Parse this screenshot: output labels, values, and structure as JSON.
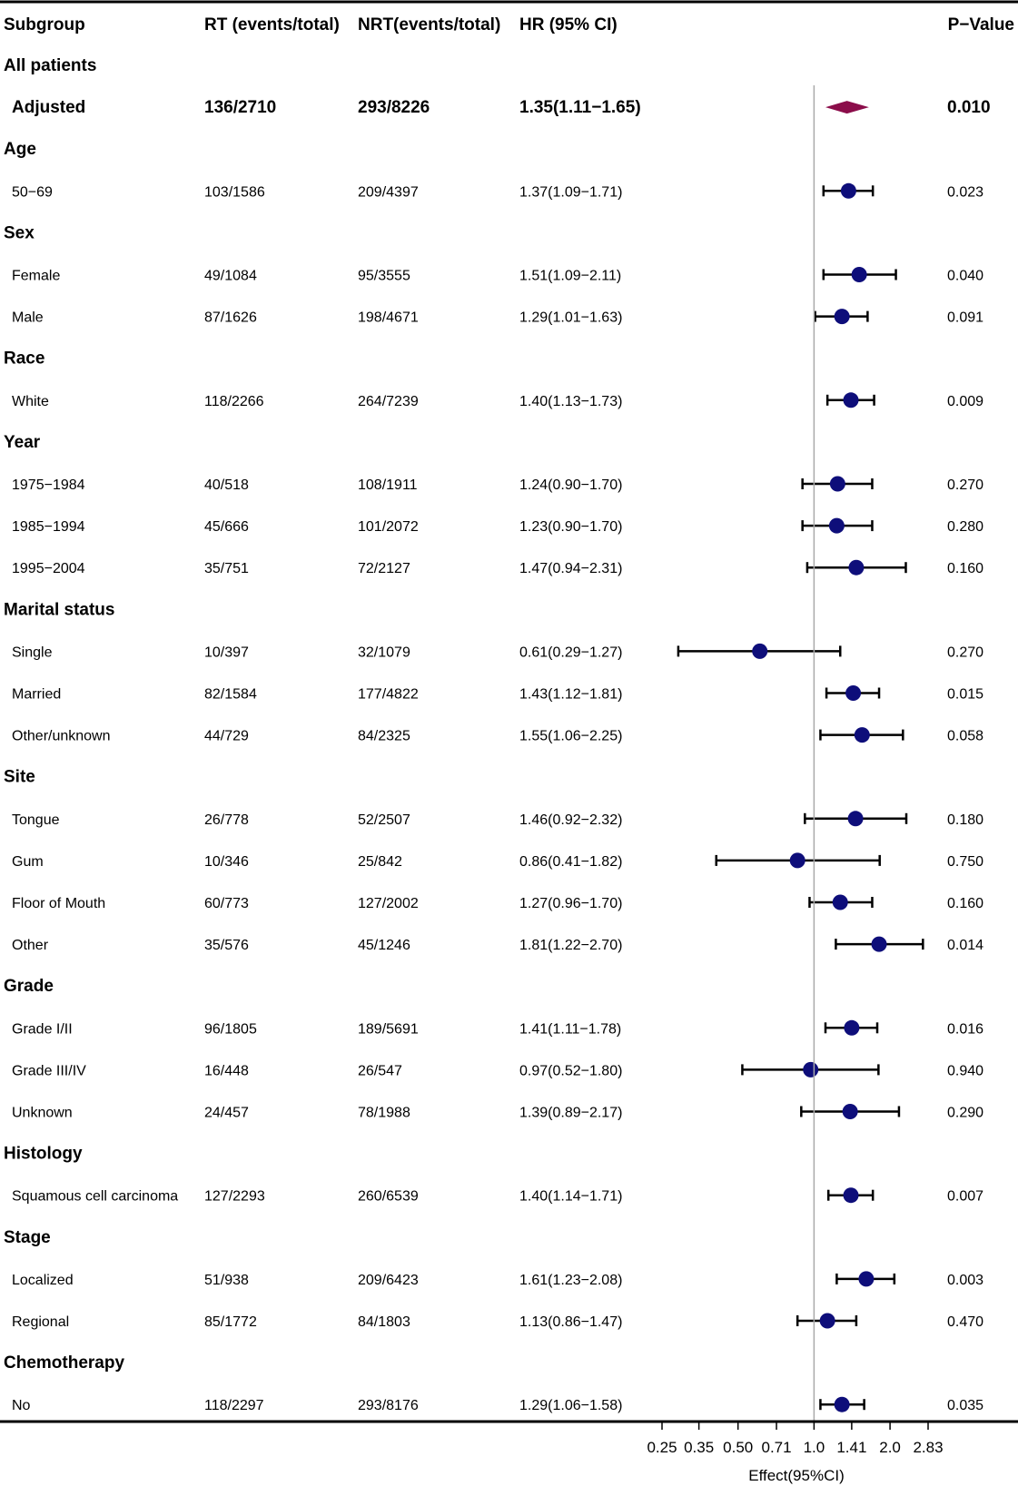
{
  "chart_data": {
    "type": "forest",
    "columns": {
      "subgroup": "Subgroup",
      "rt": "RT (events/total)",
      "nrt": "NRT(events/total)",
      "hr": "HR (95% CI)",
      "p": "P−Value"
    },
    "xlabel": "Effect(95%CI)",
    "x_scale": "log2",
    "xlim": [
      0.25,
      2.83
    ],
    "reference_line": 1.0,
    "ticks": [
      {
        "value": 0.25,
        "label": "0.25"
      },
      {
        "value": 0.35,
        "label": "0.35"
      },
      {
        "value": 0.5,
        "label": "0.50"
      },
      {
        "value": 0.71,
        "label": "0.71"
      },
      {
        "value": 1.0,
        "label": "1.0"
      },
      {
        "value": 1.41,
        "label": "1.41"
      },
      {
        "value": 2.0,
        "label": "2.0"
      },
      {
        "value": 2.83,
        "label": "2.83"
      }
    ],
    "colors": {
      "point": "#0e0e7a",
      "diamond": "#8b0d4a",
      "line": "#000000",
      "refline": "#aaaaaa"
    },
    "rows": [
      {
        "kind": "group",
        "label": "All patients"
      },
      {
        "kind": "summary",
        "label": "Adjusted",
        "rt": "136/2710",
        "nrt": "293/8226",
        "hr_text": "1.35(1.11−1.65)",
        "hr": 1.35,
        "lo": 1.11,
        "hi": 1.65,
        "p": "0.010"
      },
      {
        "kind": "group",
        "label": "Age"
      },
      {
        "kind": "item",
        "label": "50−69",
        "rt": "103/1586",
        "nrt": "209/4397",
        "hr_text": "1.37(1.09−1.71)",
        "hr": 1.37,
        "lo": 1.09,
        "hi": 1.71,
        "p": "0.023"
      },
      {
        "kind": "group",
        "label": "Sex"
      },
      {
        "kind": "item",
        "label": "Female",
        "rt": "49/1084",
        "nrt": "95/3555",
        "hr_text": "1.51(1.09−2.11)",
        "hr": 1.51,
        "lo": 1.09,
        "hi": 2.11,
        "p": "0.040"
      },
      {
        "kind": "item",
        "label": "Male",
        "rt": "87/1626",
        "nrt": "198/4671",
        "hr_text": "1.29(1.01−1.63)",
        "hr": 1.29,
        "lo": 1.01,
        "hi": 1.63,
        "p": "0.091"
      },
      {
        "kind": "group",
        "label": "Race"
      },
      {
        "kind": "item",
        "label": "White",
        "rt": "118/2266",
        "nrt": "264/7239",
        "hr_text": "1.40(1.13−1.73)",
        "hr": 1.4,
        "lo": 1.13,
        "hi": 1.73,
        "p": "0.009"
      },
      {
        "kind": "group",
        "label": "Year"
      },
      {
        "kind": "item",
        "label": "1975−1984",
        "rt": "40/518",
        "nrt": "108/1911",
        "hr_text": "1.24(0.90−1.70)",
        "hr": 1.24,
        "lo": 0.9,
        "hi": 1.7,
        "p": "0.270"
      },
      {
        "kind": "item",
        "label": "1985−1994",
        "rt": "45/666",
        "nrt": "101/2072",
        "hr_text": "1.23(0.90−1.70)",
        "hr": 1.23,
        "lo": 0.9,
        "hi": 1.7,
        "p": "0.280"
      },
      {
        "kind": "item",
        "label": "1995−2004",
        "rt": "35/751",
        "nrt": "72/2127",
        "hr_text": "1.47(0.94−2.31)",
        "hr": 1.47,
        "lo": 0.94,
        "hi": 2.31,
        "p": "0.160"
      },
      {
        "kind": "group",
        "label": "Marital status"
      },
      {
        "kind": "item",
        "label": "Single",
        "rt": "10/397",
        "nrt": "32/1079",
        "hr_text": "0.61(0.29−1.27)",
        "hr": 0.61,
        "lo": 0.29,
        "hi": 1.27,
        "p": "0.270"
      },
      {
        "kind": "item",
        "label": "Married",
        "rt": "82/1584",
        "nrt": "177/4822",
        "hr_text": "1.43(1.12−1.81)",
        "hr": 1.43,
        "lo": 1.12,
        "hi": 1.81,
        "p": "0.015"
      },
      {
        "kind": "item",
        "label": "Other/unknown",
        "rt": "44/729",
        "nrt": "84/2325",
        "hr_text": "1.55(1.06−2.25)",
        "hr": 1.55,
        "lo": 1.06,
        "hi": 2.25,
        "p": "0.058"
      },
      {
        "kind": "group",
        "label": "Site"
      },
      {
        "kind": "item",
        "label": "Tongue",
        "rt": "26/778",
        "nrt": "52/2507",
        "hr_text": "1.46(0.92−2.32)",
        "hr": 1.46,
        "lo": 0.92,
        "hi": 2.32,
        "p": "0.180"
      },
      {
        "kind": "item",
        "label": "Gum",
        "rt": "10/346",
        "nrt": "25/842",
        "hr_text": "0.86(0.41−1.82)",
        "hr": 0.86,
        "lo": 0.41,
        "hi": 1.82,
        "p": "0.750"
      },
      {
        "kind": "item",
        "label": "Floor of Mouth",
        "rt": "60/773",
        "nrt": "127/2002",
        "hr_text": "1.27(0.96−1.70)",
        "hr": 1.27,
        "lo": 0.96,
        "hi": 1.7,
        "p": "0.160"
      },
      {
        "kind": "item",
        "label": "Other",
        "rt": "35/576",
        "nrt": "45/1246",
        "hr_text": "1.81(1.22−2.70)",
        "hr": 1.81,
        "lo": 1.22,
        "hi": 2.7,
        "p": "0.014"
      },
      {
        "kind": "group",
        "label": "Grade"
      },
      {
        "kind": "item",
        "label": "Grade I/II",
        "rt": "96/1805",
        "nrt": "189/5691",
        "hr_text": "1.41(1.11−1.78)",
        "hr": 1.41,
        "lo": 1.11,
        "hi": 1.78,
        "p": "0.016"
      },
      {
        "kind": "item",
        "label": "Grade III/IV",
        "rt": "16/448",
        "nrt": "26/547",
        "hr_text": "0.97(0.52−1.80)",
        "hr": 0.97,
        "lo": 0.52,
        "hi": 1.8,
        "p": "0.940"
      },
      {
        "kind": "item",
        "label": "Unknown",
        "rt": "24/457",
        "nrt": "78/1988",
        "hr_text": "1.39(0.89−2.17)",
        "hr": 1.39,
        "lo": 0.89,
        "hi": 2.17,
        "p": "0.290"
      },
      {
        "kind": "group",
        "label": "Histology"
      },
      {
        "kind": "item",
        "label": "Squamous cell carcinoma",
        "rt": "127/2293",
        "nrt": "260/6539",
        "hr_text": "1.40(1.14−1.71)",
        "hr": 1.4,
        "lo": 1.14,
        "hi": 1.71,
        "p": "0.007"
      },
      {
        "kind": "group",
        "label": "Stage"
      },
      {
        "kind": "item",
        "label": "Localized",
        "rt": "51/938",
        "nrt": "209/6423",
        "hr_text": "1.61(1.23−2.08)",
        "hr": 1.61,
        "lo": 1.23,
        "hi": 2.08,
        "p": "0.003"
      },
      {
        "kind": "item",
        "label": "Regional",
        "rt": "85/1772",
        "nrt": "84/1803",
        "hr_text": "1.13(0.86−1.47)",
        "hr": 1.13,
        "lo": 0.86,
        "hi": 1.47,
        "p": "0.470"
      },
      {
        "kind": "group",
        "label": "Chemotherapy"
      },
      {
        "kind": "item",
        "label": "No",
        "rt": "118/2297",
        "nrt": "293/8176",
        "hr_text": "1.29(1.06−1.58)",
        "hr": 1.29,
        "lo": 1.06,
        "hi": 1.58,
        "p": "0.035"
      }
    ]
  }
}
